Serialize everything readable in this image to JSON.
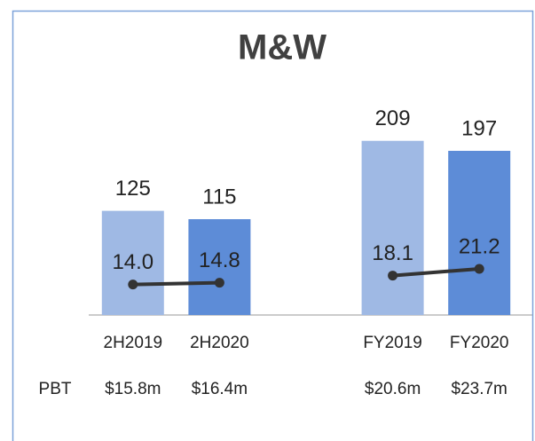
{
  "chart_data": {
    "type": "bar",
    "title": "M&W",
    "categories": [
      "2H2019",
      "2H2020",
      null,
      "FY2019",
      "FY2020"
    ],
    "bar_values": [
      125,
      115,
      null,
      209,
      197
    ],
    "bar_colors": [
      "#9fb9e4",
      "#5d8cd7",
      null,
      "#9fb9e4",
      "#5d8cd7"
    ],
    "ylim": [
      0,
      230
    ],
    "line": {
      "values": [
        14.0,
        14.8,
        null,
        18.1,
        21.2
      ],
      "value_labels": [
        "14.0",
        "14.8",
        null,
        "18.1",
        "21.2"
      ],
      "color": "#333333",
      "axis": "y2"
    },
    "y2lim": [
      0,
      88
    ],
    "row_label": "PBT",
    "row_values": [
      "$15.8m",
      "$16.4m",
      null,
      "$20.6m",
      "$23.7m"
    ]
  }
}
